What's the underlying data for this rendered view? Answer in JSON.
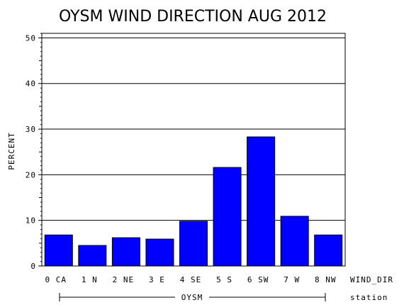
{
  "chart_data": {
    "type": "bar",
    "title": "OYSM WIND DIRECTION AUG 2012",
    "ylabel": "PERCENT",
    "xlabel": "WIND_DIR",
    "group_axis_label": "station",
    "group_label": "OYSM",
    "categories": [
      "0 CA",
      "1 N",
      "2 NE",
      "3 E",
      "4 SE",
      "5 S",
      "6 SW",
      "7 W",
      "8 NW"
    ],
    "values": [
      6.8,
      4.5,
      6.2,
      5.9,
      9.8,
      21.6,
      28.3,
      10.9,
      6.8
    ],
    "ylim": [
      0,
      51
    ],
    "yticks": [
      0,
      10,
      20,
      30,
      40,
      50
    ],
    "grid": true,
    "bar_color": "#0000ff"
  }
}
